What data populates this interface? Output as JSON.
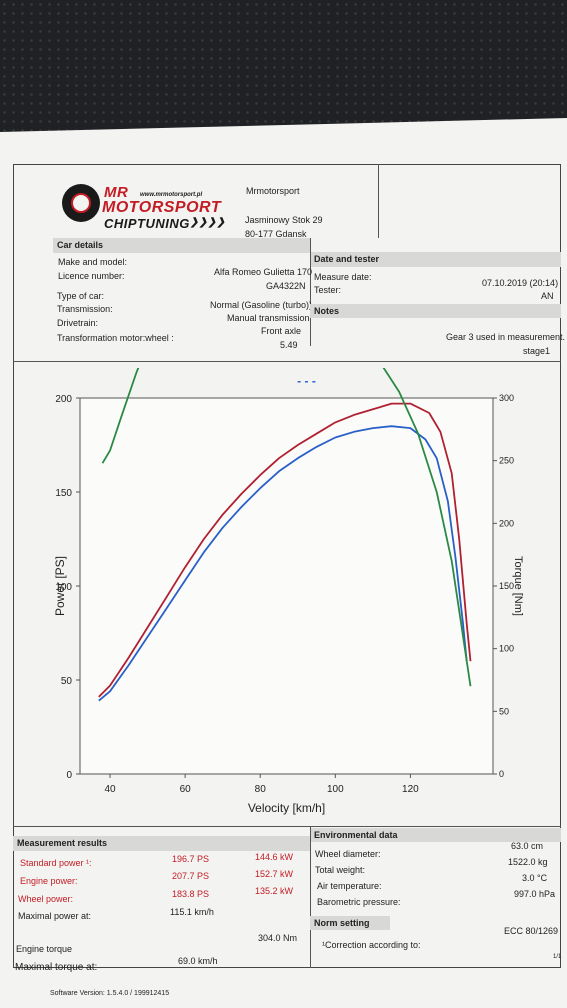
{
  "company": {
    "logo_mr": "MR",
    "logo_motorsport": "MOTORSPORT",
    "logo_chiptuning": "CHIPTUNING",
    "logo_arrows": "❯❯❯❯",
    "website": "www.mrmotorsport.pl",
    "name": "Mrmotorsport",
    "street": "Jasminowy Stok 29",
    "city": "80-177 Gdansk"
  },
  "car_details": {
    "header": "Car details",
    "make_label": "Make and model:",
    "make_value": "Alfa Romeo Gulietta 170",
    "licence_label": "Licence number:",
    "licence_value": "GA4322N",
    "type_label": "Type of car:",
    "type_value": "Normal (Gasoline (turbo))",
    "transmission_label": "Transmission:",
    "transmission_value": "Manual transmission",
    "drivetrain_label": "Drivetrain:",
    "drivetrain_value": "Front axle",
    "ratio_label": "Transformation motor:wheel :",
    "ratio_value": "5.49"
  },
  "date_tester": {
    "header": "Date and tester",
    "date_label": "Measure date:",
    "date_value": "07.10.2019 (20:14)",
    "tester_label": "Tester:",
    "tester_value": "AN"
  },
  "notes": {
    "header": "Notes",
    "line1": "Gear 3 used in measurement.",
    "line2": "stage1"
  },
  "chart_data": {
    "type": "line",
    "xlabel": "Velocity [km/h]",
    "ylabel": "Power [PS]",
    "y2label": "Torque [Nm]",
    "xlim": [
      32,
      142
    ],
    "ylim": [
      0,
      200
    ],
    "y2lim": [
      0,
      300
    ],
    "xticks": [
      40,
      60,
      80,
      100,
      120
    ],
    "yticks": [
      0,
      50,
      100,
      150,
      200
    ],
    "y2ticks": [
      0,
      50,
      100,
      150,
      200,
      250,
      300
    ],
    "legend": "- - -",
    "series": [
      {
        "color": "#b02030",
        "axis": "power",
        "x": [
          37,
          40,
          45,
          50,
          55,
          60,
          65,
          70,
          75,
          80,
          85,
          90,
          95,
          100,
          105,
          110,
          115,
          120,
          125,
          128,
          131,
          133,
          135,
          136
        ],
        "y": [
          41,
          47,
          62,
          78,
          94,
          110,
          125,
          138,
          149,
          159,
          168,
          175,
          181,
          187,
          191,
          194,
          197,
          197,
          192,
          182,
          160,
          125,
          80,
          60
        ]
      },
      {
        "color": "#2860c8",
        "axis": "power",
        "x": [
          37,
          40,
          45,
          50,
          55,
          60,
          65,
          70,
          75,
          80,
          85,
          90,
          95,
          100,
          105,
          110,
          115,
          120,
          124,
          127,
          130,
          132,
          134,
          135
        ],
        "y": [
          39,
          44,
          58,
          73,
          88,
          103,
          118,
          131,
          142,
          152,
          161,
          168,
          174,
          179,
          182,
          184,
          185,
          184,
          178,
          168,
          145,
          115,
          80,
          60
        ]
      },
      {
        "color": "#2a8a44",
        "axis": "torque",
        "x": [
          38,
          40,
          43,
          47,
          52,
          57,
          62,
          67,
          72,
          77,
          82,
          87,
          92,
          97,
          102,
          107,
          112,
          117,
          122,
          127,
          131,
          134,
          136
        ],
        "y": [
          248,
          258,
          285,
          320,
          358,
          378,
          389,
          395,
          395,
          392,
          388,
          384,
          378,
          370,
          358,
          345,
          328,
          305,
          272,
          225,
          170,
          110,
          70
        ]
      }
    ]
  },
  "measurement": {
    "header": "Measurement results",
    "std_label": "Standard power ¹:",
    "std_ps": "196.7 PS",
    "std_kw": "144.6 kW",
    "eng_label": "Engine power:",
    "eng_ps": "207.7 PS",
    "eng_kw": "152.7 kW",
    "wheel_label": "Wheel power:",
    "wheel_ps": "183.8 PS",
    "wheel_kw": "135.2 kW",
    "maxp_label": "Maximal power at:",
    "maxp_value": "115.1 km/h",
    "torque_label": "Engine torque",
    "torque_value": "304.0 Nm",
    "maxt_label": "Maximal torque at:",
    "maxt_value": "69.0 km/h"
  },
  "environment": {
    "header": "Environmental data",
    "wheel_label": "Wheel diameter:",
    "wheel_value": "63.0 cm",
    "weight_label": "Total weight:",
    "weight_value": "1522.0 kg",
    "air_label": "Air temperature:",
    "air_value": "3.0 °C",
    "baro_label": "Barometric pressure:",
    "baro_value": "997.0 hPa"
  },
  "norm": {
    "header": "Norm setting",
    "corr_label": "¹Correction according to:",
    "corr_value": "ECC 80/1269"
  },
  "software": "Software Version: 1.5.4.0 / 199912415",
  "page_number": "1/1"
}
